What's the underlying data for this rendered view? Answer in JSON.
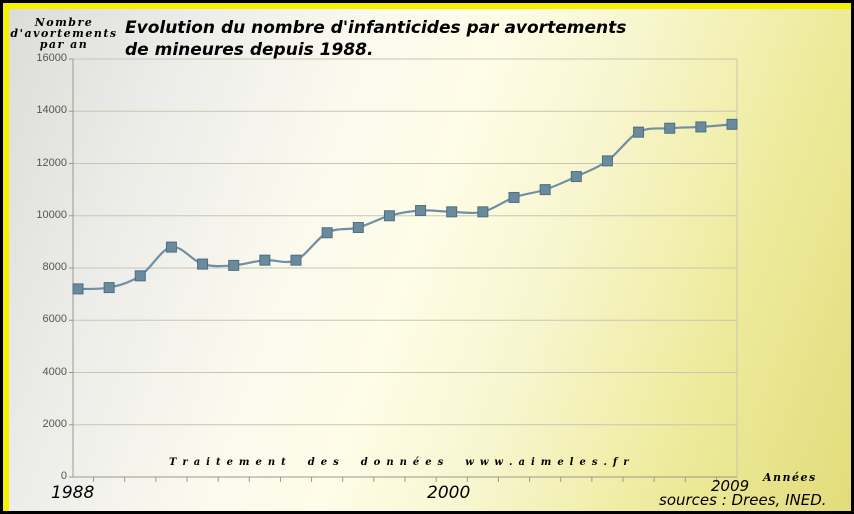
{
  "chart_data": {
    "type": "line",
    "title": "Evolution du nombre d'infanticides par avortements de mineures depuis 1988.",
    "title_lines": [
      "Evolution du nombre d'infanticides par avortements",
      "de mineures depuis 1988."
    ],
    "ylabel_lines": [
      "Nombre",
      "d'avortements",
      "par an"
    ],
    "xlabel": "Années",
    "x": [
      1988,
      1989,
      1990,
      1991,
      1992,
      1993,
      1994,
      1995,
      1996,
      1997,
      1998,
      1999,
      2000,
      2001,
      2002,
      2003,
      2004,
      2005,
      2006,
      2007,
      2008,
      2009
    ],
    "values": [
      7200,
      7250,
      7700,
      8800,
      8150,
      8100,
      8300,
      8300,
      9350,
      9550,
      10000,
      10200,
      10150,
      10150,
      10700,
      11000,
      11500,
      12100,
      13200,
      13350,
      13400,
      13500
    ],
    "ylim": [
      0,
      16000
    ],
    "yticks": [
      "0",
      "2000",
      "4000",
      "6000",
      "8000",
      "10000",
      "12000",
      "14000",
      "16000"
    ],
    "xlabels_shown": [
      "1988",
      "2000",
      "2009"
    ],
    "grid": true,
    "smooth": true,
    "series_color": "#6f8fa4",
    "marker_color": "#6a8a9e",
    "annotation": "Traitement des données www.aimeles.fr",
    "source": "sources : Drees, INED."
  },
  "colors": {
    "border": "#f4f000",
    "background": "#000000"
  }
}
